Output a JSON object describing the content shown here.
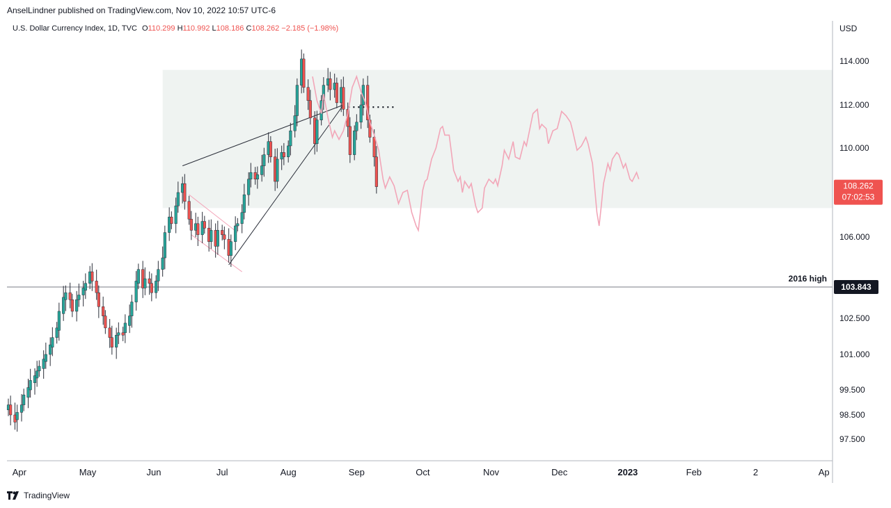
{
  "header": {
    "publisher": "AnselLindner published on TradingView.com, Nov 10, 2022 10:57 UTC-6",
    "symbol": "U.S. Dollar Currency Index, 1D, TVC",
    "open_label": "O",
    "open": "110.299",
    "high_label": "H",
    "high": "110.992",
    "low_label": "L",
    "low": "108.186",
    "close_label": "C",
    "close": "108.262",
    "change": "−2.185 (−1.98%)",
    "currency": "USD"
  },
  "footer": {
    "brand": "TradingView",
    "logo_icon": "tradingview-logo-icon"
  },
  "chart_data": {
    "type": "candlestick",
    "title": "U.S. Dollar Currency Index, 1D, TVC",
    "y_axis_unit": "USD",
    "y_range": [
      96.6,
      115.6
    ],
    "y_ticks": [
      "114.000",
      "112.000",
      "110.000",
      "106.000",
      "102.500",
      "101.000",
      "99.500",
      "98.500",
      "97.500"
    ],
    "x_ticks": [
      "Apr",
      "May",
      "Jun",
      "Jul",
      "Aug",
      "Sep",
      "Oct",
      "Nov",
      "Dec",
      "2023",
      "Feb",
      "2",
      "Ap"
    ],
    "x_range_days": [
      0,
      372
    ],
    "price_label": {
      "value": "108.262",
      "countdown": "07:02:53"
    },
    "horizontal_line": {
      "value": 103.843,
      "label": "2016 high",
      "price_tag": "103.843"
    },
    "zone": {
      "from_day": 70,
      "to_day": 372,
      "top": 113.6,
      "bottom": 107.3
    },
    "candle_series": [
      {
        "d": 0,
        "o": 98.7,
        "c": 98.9
      },
      {
        "d": 1,
        "o": 98.9,
        "c": 98.5
      },
      {
        "d": 3,
        "o": 98.5,
        "c": 98.2
      },
      {
        "d": 4,
        "o": 98.3,
        "c": 98.6
      },
      {
        "d": 6,
        "o": 98.6,
        "c": 98.9
      },
      {
        "d": 7,
        "o": 98.9,
        "c": 99.3
      },
      {
        "d": 9,
        "o": 99.2,
        "c": 99.6
      },
      {
        "d": 10,
        "o": 99.5,
        "c": 99.9
      },
      {
        "d": 12,
        "o": 99.8,
        "c": 100.1
      },
      {
        "d": 13,
        "o": 100.0,
        "c": 100.3
      },
      {
        "d": 14,
        "o": 100.3,
        "c": 100.5
      },
      {
        "d": 16,
        "o": 100.4,
        "c": 100.8
      },
      {
        "d": 17,
        "o": 100.7,
        "c": 101.0
      },
      {
        "d": 19,
        "o": 101.0,
        "c": 101.4
      },
      {
        "d": 20,
        "o": 101.3,
        "c": 101.7
      },
      {
        "d": 22,
        "o": 101.7,
        "c": 102.1
      },
      {
        "d": 23,
        "o": 102.0,
        "c": 102.8
      },
      {
        "d": 25,
        "o": 102.7,
        "c": 103.4
      },
      {
        "d": 26,
        "o": 103.3,
        "c": 103.6
      },
      {
        "d": 28,
        "o": 103.6,
        "c": 103.3
      },
      {
        "d": 29,
        "o": 103.3,
        "c": 102.8
      },
      {
        "d": 31,
        "o": 102.8,
        "c": 103.3
      },
      {
        "d": 32,
        "o": 103.3,
        "c": 103.5
      },
      {
        "d": 34,
        "o": 103.5,
        "c": 103.8
      },
      {
        "d": 35,
        "o": 103.7,
        "c": 104.0
      },
      {
        "d": 37,
        "o": 104.0,
        "c": 104.5
      },
      {
        "d": 38,
        "o": 104.5,
        "c": 104.1
      },
      {
        "d": 40,
        "o": 104.1,
        "c": 103.6
      },
      {
        "d": 41,
        "o": 103.6,
        "c": 103.0
      },
      {
        "d": 43,
        "o": 103.0,
        "c": 102.6
      },
      {
        "d": 44,
        "o": 102.6,
        "c": 102.1
      },
      {
        "d": 46,
        "o": 102.1,
        "c": 101.7
      },
      {
        "d": 47,
        "o": 101.7,
        "c": 101.3
      },
      {
        "d": 49,
        "o": 101.3,
        "c": 101.8
      },
      {
        "d": 50,
        "o": 101.8,
        "c": 101.9
      },
      {
        "d": 52,
        "o": 101.9,
        "c": 101.8
      },
      {
        "d": 53,
        "o": 101.9,
        "c": 102.3
      },
      {
        "d": 55,
        "o": 102.2,
        "c": 102.6
      },
      {
        "d": 56,
        "o": 102.6,
        "c": 103.2
      },
      {
        "d": 58,
        "o": 103.2,
        "c": 104.1
      },
      {
        "d": 59,
        "o": 104.0,
        "c": 104.6
      },
      {
        "d": 61,
        "o": 104.6,
        "c": 103.8
      },
      {
        "d": 62,
        "o": 103.8,
        "c": 104.2
      },
      {
        "d": 64,
        "o": 104.2,
        "c": 104.0
      },
      {
        "d": 65,
        "o": 104.0,
        "c": 103.6
      },
      {
        "d": 67,
        "o": 103.6,
        "c": 104.1
      },
      {
        "d": 68,
        "o": 104.1,
        "c": 104.6
      },
      {
        "d": 70,
        "o": 104.6,
        "c": 105.1
      },
      {
        "d": 71,
        "o": 105.1,
        "c": 106.2
      },
      {
        "d": 73,
        "o": 106.2,
        "c": 106.9
      },
      {
        "d": 74,
        "o": 106.9,
        "c": 106.6
      },
      {
        "d": 76,
        "o": 106.6,
        "c": 107.4
      },
      {
        "d": 77,
        "o": 107.4,
        "c": 108.0
      },
      {
        "d": 79,
        "o": 108.0,
        "c": 108.4
      },
      {
        "d": 80,
        "o": 108.4,
        "c": 107.6
      },
      {
        "d": 82,
        "o": 107.6,
        "c": 106.8
      },
      {
        "d": 83,
        "o": 106.8,
        "c": 106.3
      },
      {
        "d": 85,
        "o": 106.3,
        "c": 106.6
      },
      {
        "d": 86,
        "o": 106.6,
        "c": 106.1
      },
      {
        "d": 88,
        "o": 106.1,
        "c": 106.7
      },
      {
        "d": 89,
        "o": 106.7,
        "c": 106.4
      },
      {
        "d": 91,
        "o": 106.4,
        "c": 105.8
      },
      {
        "d": 92,
        "o": 105.8,
        "c": 106.3
      },
      {
        "d": 94,
        "o": 106.3,
        "c": 105.6
      },
      {
        "d": 95,
        "o": 105.6,
        "c": 106.3
      },
      {
        "d": 97,
        "o": 106.3,
        "c": 106.1
      },
      {
        "d": 98,
        "o": 106.1,
        "c": 105.9
      },
      {
        "d": 100,
        "o": 105.9,
        "c": 105.2
      },
      {
        "d": 101,
        "o": 105.2,
        "c": 105.8
      },
      {
        "d": 103,
        "o": 105.8,
        "c": 106.5
      },
      {
        "d": 104,
        "o": 106.5,
        "c": 106.6
      },
      {
        "d": 106,
        "o": 106.6,
        "c": 107.1
      },
      {
        "d": 107,
        "o": 107.1,
        "c": 107.9
      },
      {
        "d": 109,
        "o": 107.9,
        "c": 108.6
      },
      {
        "d": 110,
        "o": 108.6,
        "c": 108.9
      },
      {
        "d": 112,
        "o": 108.9,
        "c": 108.6
      },
      {
        "d": 113,
        "o": 108.6,
        "c": 108.8
      },
      {
        "d": 115,
        "o": 108.8,
        "c": 109.2
      },
      {
        "d": 116,
        "o": 109.2,
        "c": 109.7
      },
      {
        "d": 118,
        "o": 109.7,
        "c": 110.3
      },
      {
        "d": 119,
        "o": 110.3,
        "c": 109.6
      },
      {
        "d": 121,
        "o": 109.6,
        "c": 108.5
      },
      {
        "d": 122,
        "o": 108.5,
        "c": 109.5
      },
      {
        "d": 124,
        "o": 109.5,
        "c": 109.8
      },
      {
        "d": 125,
        "o": 109.8,
        "c": 109.6
      },
      {
        "d": 127,
        "o": 109.6,
        "c": 110.1
      },
      {
        "d": 128,
        "o": 110.1,
        "c": 110.8
      },
      {
        "d": 130,
        "o": 110.8,
        "c": 111.5
      },
      {
        "d": 131,
        "o": 111.5,
        "c": 112.9
      },
      {
        "d": 133,
        "o": 112.9,
        "c": 114.1
      },
      {
        "d": 134,
        "o": 114.1,
        "c": 112.8
      },
      {
        "d": 136,
        "o": 112.8,
        "c": 112.2
      },
      {
        "d": 137,
        "o": 112.2,
        "c": 111.4
      },
      {
        "d": 139,
        "o": 111.4,
        "c": 110.2
      },
      {
        "d": 140,
        "o": 110.2,
        "c": 111.3
      },
      {
        "d": 142,
        "o": 111.3,
        "c": 112.2
      },
      {
        "d": 143,
        "o": 112.2,
        "c": 112.9
      },
      {
        "d": 145,
        "o": 112.9,
        "c": 113.2
      },
      {
        "d": 146,
        "o": 113.2,
        "c": 112.7
      },
      {
        "d": 148,
        "o": 112.7,
        "c": 113.0
      },
      {
        "d": 149,
        "o": 113.0,
        "c": 112.1
      },
      {
        "d": 151,
        "o": 112.1,
        "c": 112.8
      },
      {
        "d": 152,
        "o": 112.8,
        "c": 111.8
      },
      {
        "d": 154,
        "o": 111.8,
        "c": 111.0
      },
      {
        "d": 155,
        "o": 111.0,
        "c": 109.7
      },
      {
        "d": 157,
        "o": 109.7,
        "c": 110.8
      },
      {
        "d": 158,
        "o": 110.8,
        "c": 111.2
      },
      {
        "d": 160,
        "o": 111.2,
        "c": 112.0
      },
      {
        "d": 161,
        "o": 112.0,
        "c": 112.9
      },
      {
        "d": 163,
        "o": 112.9,
        "c": 111.3
      },
      {
        "d": 164,
        "o": 111.3,
        "c": 110.5
      },
      {
        "d": 166,
        "o": 110.5,
        "c": 109.6
      },
      {
        "d": 167,
        "o": 109.6,
        "c": 108.262
      }
    ],
    "projection_series": [
      {
        "d": 138,
        "v": 113.3
      },
      {
        "d": 140,
        "v": 112.2
      },
      {
        "d": 142,
        "v": 111.6
      },
      {
        "d": 143,
        "v": 112.5
      },
      {
        "d": 145,
        "v": 111.4
      },
      {
        "d": 147,
        "v": 110.5
      },
      {
        "d": 148,
        "v": 110.8
      },
      {
        "d": 150,
        "v": 110.4
      },
      {
        "d": 152,
        "v": 110.8
      },
      {
        "d": 154,
        "v": 111.6
      },
      {
        "d": 156,
        "v": 112.8
      },
      {
        "d": 158,
        "v": 113.3
      },
      {
        "d": 160,
        "v": 112.6
      },
      {
        "d": 162,
        "v": 112.1
      },
      {
        "d": 164,
        "v": 111.2
      },
      {
        "d": 166,
        "v": 110.6
      },
      {
        "d": 168,
        "v": 109.9
      },
      {
        "d": 170,
        "v": 108.6
      },
      {
        "d": 171,
        "v": 108.2
      },
      {
        "d": 173,
        "v": 108.7
      },
      {
        "d": 175,
        "v": 108.3
      },
      {
        "d": 177,
        "v": 107.5
      },
      {
        "d": 179,
        "v": 108.0
      },
      {
        "d": 181,
        "v": 108.1
      },
      {
        "d": 183,
        "v": 107.1
      },
      {
        "d": 185,
        "v": 106.5
      },
      {
        "d": 186,
        "v": 106.3
      },
      {
        "d": 188,
        "v": 108.1
      },
      {
        "d": 189,
        "v": 108.5
      },
      {
        "d": 190,
        "v": 108.6
      },
      {
        "d": 192,
        "v": 109.5
      },
      {
        "d": 194,
        "v": 110.0
      },
      {
        "d": 196,
        "v": 110.9
      },
      {
        "d": 197,
        "v": 111.0
      },
      {
        "d": 198,
        "v": 110.6
      },
      {
        "d": 200,
        "v": 110.6
      },
      {
        "d": 201,
        "v": 109.8
      },
      {
        "d": 202,
        "v": 109.0
      },
      {
        "d": 204,
        "v": 108.5
      },
      {
        "d": 205,
        "v": 108.7
      },
      {
        "d": 206,
        "v": 108.0
      },
      {
        "d": 207,
        "v": 108.5
      },
      {
        "d": 209,
        "v": 108.2
      },
      {
        "d": 210,
        "v": 108.4
      },
      {
        "d": 212,
        "v": 107.4
      },
      {
        "d": 213,
        "v": 107.1
      },
      {
        "d": 215,
        "v": 107.3
      },
      {
        "d": 216,
        "v": 108.2
      },
      {
        "d": 218,
        "v": 108.6
      },
      {
        "d": 220,
        "v": 108.4
      },
      {
        "d": 221,
        "v": 108.6
      },
      {
        "d": 222,
        "v": 108.3
      },
      {
        "d": 224,
        "v": 109.2
      },
      {
        "d": 225,
        "v": 109.9
      },
      {
        "d": 227,
        "v": 109.5
      },
      {
        "d": 229,
        "v": 110.3
      },
      {
        "d": 230,
        "v": 109.6
      },
      {
        "d": 232,
        "v": 109.5
      },
      {
        "d": 234,
        "v": 110.3
      },
      {
        "d": 235,
        "v": 110.1
      },
      {
        "d": 237,
        "v": 111.1
      },
      {
        "d": 238,
        "v": 111.6
      },
      {
        "d": 240,
        "v": 111.8
      },
      {
        "d": 241,
        "v": 110.9
      },
      {
        "d": 242,
        "v": 111.1
      },
      {
        "d": 244,
        "v": 110.9
      },
      {
        "d": 245,
        "v": 110.2
      },
      {
        "d": 247,
        "v": 110.8
      },
      {
        "d": 249,
        "v": 110.9
      },
      {
        "d": 250,
        "v": 111.3
      },
      {
        "d": 251,
        "v": 111.7
      },
      {
        "d": 253,
        "v": 111.5
      },
      {
        "d": 255,
        "v": 111.2
      },
      {
        "d": 256,
        "v": 110.8
      },
      {
        "d": 258,
        "v": 109.9
      },
      {
        "d": 260,
        "v": 110.1
      },
      {
        "d": 262,
        "v": 110.5
      },
      {
        "d": 263,
        "v": 110.2
      },
      {
        "d": 265,
        "v": 109.3
      },
      {
        "d": 267,
        "v": 107.1
      },
      {
        "d": 268,
        "v": 106.5
      },
      {
        "d": 269,
        "v": 107.4
      },
      {
        "d": 270,
        "v": 108.4
      },
      {
        "d": 272,
        "v": 109.3
      },
      {
        "d": 273,
        "v": 109.0
      },
      {
        "d": 274,
        "v": 109.5
      },
      {
        "d": 276,
        "v": 109.8
      },
      {
        "d": 277,
        "v": 109.7
      },
      {
        "d": 279,
        "v": 109.1
      },
      {
        "d": 280,
        "v": 109.3
      },
      {
        "d": 282,
        "v": 108.6
      },
      {
        "d": 283,
        "v": 108.5
      },
      {
        "d": 285,
        "v": 108.9
      },
      {
        "d": 286,
        "v": 108.6
      }
    ],
    "trend_lines": [
      {
        "name": "upper-wedge-line",
        "from": {
          "d": 79,
          "v": 109.2
        },
        "to": {
          "d": 152,
          "v": 112.0
        }
      },
      {
        "name": "lower-wedge-line",
        "from": {
          "d": 100,
          "v": 104.8
        },
        "to": {
          "d": 152,
          "v": 112.0
        }
      }
    ],
    "dotted_line": {
      "from": {
        "d": 152,
        "v": 111.9
      },
      "to": {
        "d": 176,
        "v": 111.9
      }
    },
    "channel_lines": [
      {
        "from": {
          "d": 82,
          "v": 107.9
        },
        "to": {
          "d": 104,
          "v": 106.2
        }
      },
      {
        "from": {
          "d": 83,
          "v": 106.1
        },
        "to": {
          "d": 106,
          "v": 104.5
        }
      }
    ]
  }
}
